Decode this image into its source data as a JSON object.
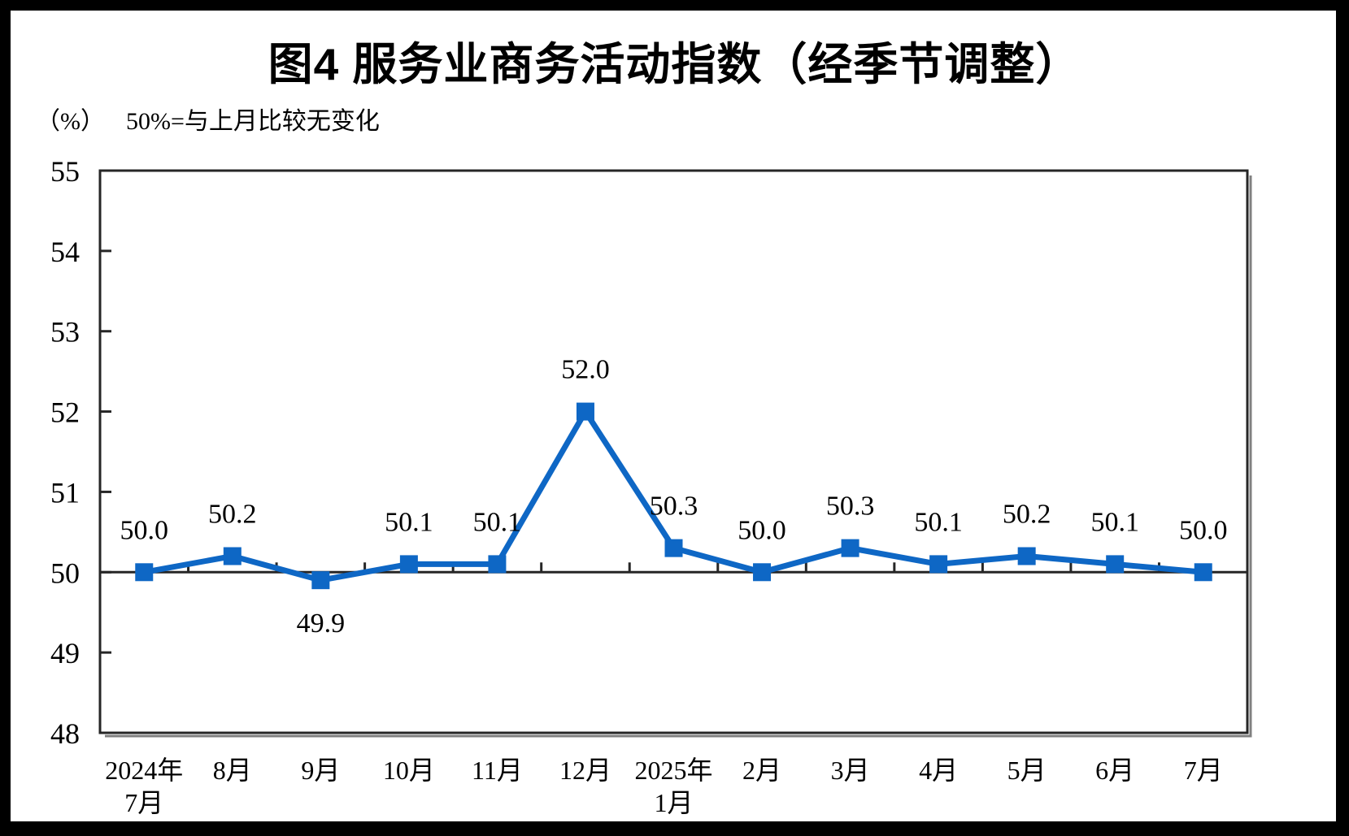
{
  "chart_data": {
    "type": "line",
    "title": "图4 服务业商务活动指数（经季节调整）",
    "unit_label": "（%）",
    "note": "50%=与上月比较无变化",
    "categories": [
      [
        "2024年",
        "7月"
      ],
      [
        "8月"
      ],
      [
        "9月"
      ],
      [
        "10月"
      ],
      [
        "11月"
      ],
      [
        "12月"
      ],
      [
        "2025年",
        "1月"
      ],
      [
        "2月"
      ],
      [
        "3月"
      ],
      [
        "4月"
      ],
      [
        "5月"
      ],
      [
        "6月"
      ],
      [
        "7月"
      ]
    ],
    "series": [
      {
        "name": "服务业商务活动指数",
        "values": [
          50.0,
          50.2,
          49.9,
          50.1,
          50.1,
          52.0,
          50.3,
          50.0,
          50.3,
          50.1,
          50.2,
          50.1,
          50.0
        ],
        "point_labels": [
          "50.0",
          "50.2",
          "49.9",
          "50.1",
          "50.1",
          "52.0",
          "50.3",
          "50.0",
          "50.3",
          "50.1",
          "50.2",
          "50.1",
          "50.0"
        ],
        "label_placement": [
          "above",
          "above",
          "below",
          "above",
          "above",
          "above",
          "above",
          "above",
          "above",
          "above",
          "above",
          "above",
          "above"
        ]
      }
    ],
    "ylim": [
      48,
      55
    ],
    "yticks": [
      48,
      49,
      50,
      51,
      52,
      53,
      54,
      55
    ],
    "reference_line": 50,
    "grid": false,
    "legend": "none",
    "marker": "square",
    "colors": {
      "line": "#0E67C5",
      "axis": "#262626",
      "shadow": "#808080",
      "text": "#000000",
      "background": "#FFFFFF",
      "frame": "#000000"
    }
  }
}
